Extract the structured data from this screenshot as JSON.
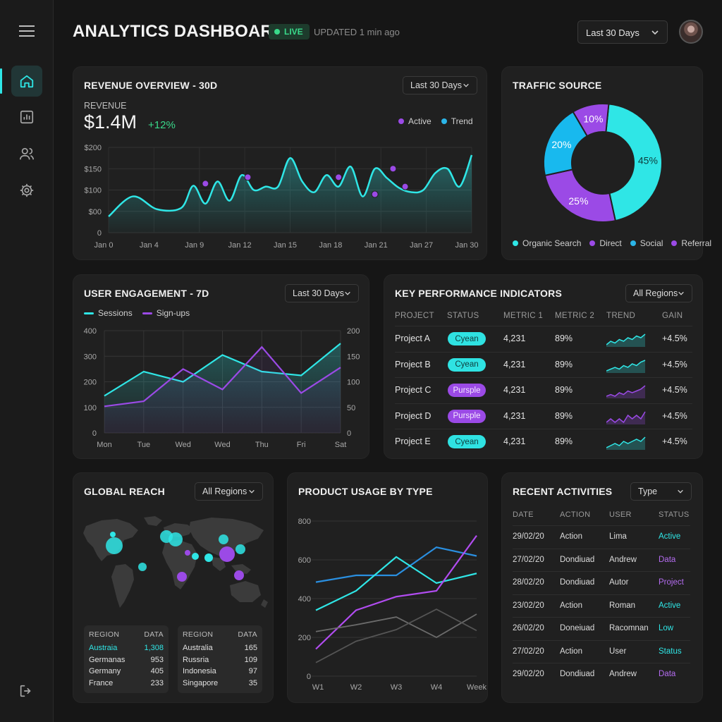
{
  "header": {
    "title": "ANALYTICS DASHBOARD",
    "live": "LIVE",
    "updated": "UPDATED 1 min ago",
    "range": "Last 30 Days"
  },
  "sidebar": {
    "items": [
      {
        "icon": "home-icon",
        "active": true
      },
      {
        "icon": "bar-chart-icon",
        "active": false
      },
      {
        "icon": "users-icon",
        "active": false
      },
      {
        "icon": "settings-icon",
        "active": false
      }
    ],
    "bottom_icon": "logout-icon",
    "menu_icon": "hamburger-menu-icon"
  },
  "colors": {
    "cyan": "#2fe6e6",
    "purple": "#9b4ae6",
    "blue": "#2bb5e8",
    "green": "#39d98a",
    "bg": "#161616",
    "card": "#202020"
  },
  "revenue": {
    "title": "REVENUE OVERVIEW - 30D",
    "range": "Last 30 Days",
    "label": "REVENUE",
    "value": "$1.4M",
    "delta": "+12%",
    "legend": [
      "Active",
      "Trend"
    ]
  },
  "traffic": {
    "title": "TRAFFIC SOURCE",
    "legend": [
      "Organic Search",
      "Direct",
      "Social",
      "Referral"
    ]
  },
  "engagement": {
    "title": "USER ENGAGEMENT - 7D",
    "range": "Last 30 Days",
    "legend": [
      "Sessions",
      "Sign-ups"
    ]
  },
  "kpi": {
    "title": "KEY PERFORMANCE INDICATORS",
    "range": "All Regions",
    "columns": [
      "PROJECT",
      "STATUS",
      "METRIC 1",
      "METRIC 2",
      "TREND",
      "GAIN"
    ],
    "rows": [
      {
        "project": "Project A",
        "status": "Cyean",
        "tone": "cyan",
        "m1": "4,231",
        "m2": "89%",
        "trend": [
          3,
          5,
          4,
          6,
          5,
          7,
          6,
          8,
          7,
          9
        ],
        "gain": "+4.5%"
      },
      {
        "project": "Project B",
        "status": "Cyean",
        "tone": "cyan",
        "m1": "4,231",
        "m2": "89%",
        "trend": [
          2,
          3,
          4,
          3,
          5,
          4,
          6,
          5,
          7,
          8
        ],
        "gain": "+4.5%"
      },
      {
        "project": "Project C",
        "status": "Pursple",
        "tone": "purple",
        "m1": "4,231",
        "m2": "89%",
        "trend": [
          3,
          4,
          3,
          5,
          4,
          6,
          5,
          6,
          7,
          9
        ],
        "gain": "+4.5%"
      },
      {
        "project": "Project D",
        "status": "Pursple",
        "tone": "purple",
        "m1": "4,231",
        "m2": "89%",
        "trend": [
          4,
          5,
          4,
          5,
          4,
          6,
          5,
          6,
          5,
          7
        ],
        "gain": "+4.5%"
      },
      {
        "project": "Project E",
        "status": "Cyean",
        "tone": "cyan",
        "m1": "4,231",
        "m2": "89%",
        "trend": [
          2,
          3,
          4,
          3,
          5,
          4,
          5,
          6,
          5,
          7
        ],
        "gain": "+4.5%"
      }
    ]
  },
  "reach": {
    "title": "GLOBAL REACH",
    "range": "All Regions",
    "table1": {
      "head": [
        "REGION",
        "DATA"
      ],
      "rows": [
        [
          "Austraia",
          "1,308"
        ],
        [
          "Germanas",
          "953"
        ],
        [
          "Germany",
          "405"
        ],
        [
          "France",
          "233"
        ]
      ]
    },
    "table2": {
      "head": [
        "REGION",
        "DATA"
      ],
      "rows": [
        [
          "Australia",
          "165"
        ],
        [
          "Russria",
          "109"
        ],
        [
          "Indonesia",
          "97"
        ],
        [
          "Singapore",
          "35"
        ]
      ]
    }
  },
  "usage": {
    "title": "PRODUCT USAGE BY TYPE"
  },
  "activities": {
    "title": "RECENT ACTIVITIES",
    "filter": "Type",
    "columns": [
      "DATE",
      "ACTION",
      "USER",
      "STATUS"
    ],
    "rows": [
      {
        "date": "29/02/20",
        "action": "Action",
        "user": "Lima",
        "status": "Active",
        "tone": "cyan"
      },
      {
        "date": "27/02/20",
        "action": "Dondiuad",
        "user": "Andrew",
        "status": "Data",
        "tone": "purple"
      },
      {
        "date": "28/02/20",
        "action": "Dondiuad",
        "user": "Autor",
        "status": "Project",
        "tone": "purple"
      },
      {
        "date": "23/02/20",
        "action": "Action",
        "user": "Roman",
        "status": "Active",
        "tone": "cyan"
      },
      {
        "date": "26/02/20",
        "action": "Doneiuad",
        "user": "Racomnan",
        "status": "Low",
        "tone": "cyan"
      },
      {
        "date": "27/02/20",
        "action": "Action",
        "user": "User",
        "status": "Status",
        "tone": "cyan"
      },
      {
        "date": "29/02/20",
        "action": "Dondiuad",
        "user": "Andrew",
        "status": "Data",
        "tone": "purple"
      }
    ]
  },
  "chart_data": [
    {
      "type": "area",
      "title": "REVENUE OVERVIEW - 30D",
      "x_ticks": [
        "Jan 0",
        "Jan 4",
        "Jan 9",
        "Jan 12",
        "Jan 15",
        "Jan 18",
        "Jan 21",
        "Jan 27",
        "Jan 30"
      ],
      "y_ticks": [
        "$200",
        "$150",
        "$100",
        "$00",
        "0"
      ],
      "ylim": [
        0,
        200
      ],
      "series": [
        {
          "name": "Trend",
          "x": [
            0,
            2,
            4,
            6,
            7,
            8,
            9,
            10,
            11,
            12,
            13,
            14,
            15,
            16,
            17,
            18,
            19,
            20,
            21,
            22,
            23,
            24,
            25,
            26,
            27,
            28,
            29,
            30
          ],
          "values": [
            38,
            85,
            55,
            58,
            110,
            68,
            120,
            75,
            135,
            100,
            108,
            108,
            175,
            120,
            95,
            135,
            108,
            155,
            85,
            150,
            128,
            105,
            95,
            100,
            140,
            150,
            108,
            182
          ]
        },
        {
          "name": "Active",
          "x": [
            8,
            11.5,
            19,
            22,
            23.5,
            24.5
          ],
          "values": [
            115,
            130,
            130,
            90,
            150,
            108
          ]
        }
      ]
    },
    {
      "type": "pie",
      "title": "TRAFFIC SOURCE",
      "categories": [
        "Organic Search",
        "Direct",
        "Social",
        "Referral"
      ],
      "values": [
        45,
        25,
        20,
        10
      ],
      "labels": [
        "45%",
        "25%",
        "20%",
        "10%"
      ]
    },
    {
      "type": "line",
      "title": "USER ENGAGEMENT - 7D",
      "categories": [
        "Mon",
        "Tue",
        "Wed",
        "Wed",
        "Thu",
        "Fri",
        "Sat"
      ],
      "y_left_ticks": [
        "400",
        "300",
        "200",
        "100",
        "0"
      ],
      "y_right_ticks": [
        "200",
        "150",
        "100",
        "50",
        "0"
      ],
      "ylim_left": [
        0,
        400
      ],
      "ylim_right": [
        0,
        200
      ],
      "series": [
        {
          "name": "Sessions",
          "axis": "left",
          "values": [
            145,
            240,
            200,
            305,
            240,
            225,
            350
          ]
        },
        {
          "name": "Sign-ups",
          "axis": "right",
          "values": [
            52,
            62,
            125,
            85,
            168,
            78,
            128
          ]
        }
      ]
    },
    {
      "type": "line",
      "title": "PRODUCT USAGE BY TYPE",
      "categories": [
        "W1",
        "W2",
        "W3",
        "W4",
        "Week"
      ],
      "y_ticks": [
        "800",
        "600",
        "400",
        "200",
        "0"
      ],
      "ylim": [
        0,
        800
      ],
      "series": [
        {
          "values": [
            485,
            520,
            520,
            665,
            620
          ]
        },
        {
          "values": [
            340,
            440,
            615,
            480,
            530
          ]
        },
        {
          "values": [
            140,
            340,
            410,
            440,
            725
          ]
        },
        {
          "values": [
            230,
            265,
            305,
            200,
            320
          ]
        },
        {
          "values": [
            70,
            180,
            240,
            345,
            235
          ]
        }
      ]
    }
  ]
}
